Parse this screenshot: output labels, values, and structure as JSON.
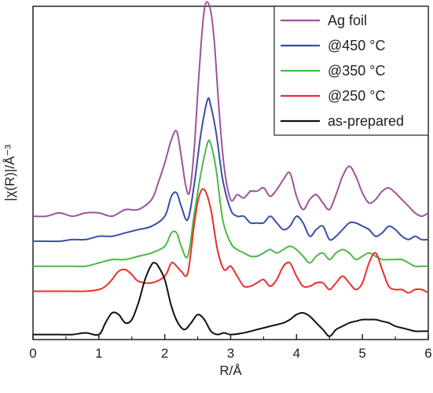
{
  "chart_data": {
    "type": "line",
    "xlabel": "R/Å",
    "ylabel": "|χ(R)|/Å⁻³",
    "xlim": [
      0,
      6
    ],
    "xticks": [
      0,
      1,
      2,
      3,
      4,
      5,
      6
    ],
    "ylim": [
      0,
      10
    ],
    "yticks": [],
    "grid": false,
    "legend_position": "top-right",
    "series": [
      {
        "name": "Ag foil",
        "color": "#a0529a",
        "x": [
          0,
          0.2,
          0.4,
          0.6,
          0.8,
          1.0,
          1.2,
          1.4,
          1.6,
          1.8,
          1.9,
          2.0,
          2.1,
          2.18,
          2.25,
          2.32,
          2.38,
          2.45,
          2.52,
          2.6,
          2.68,
          2.75,
          2.82,
          2.9,
          3.0,
          3.1,
          3.2,
          3.3,
          3.4,
          3.5,
          3.6,
          3.7,
          3.8,
          3.9,
          4.0,
          4.1,
          4.2,
          4.3,
          4.4,
          4.5,
          4.6,
          4.7,
          4.8,
          4.9,
          5.0,
          5.1,
          5.2,
          5.3,
          5.4,
          5.5,
          5.6,
          5.7,
          5.8,
          5.9,
          6.0
        ],
        "y": [
          3.7,
          3.7,
          3.8,
          3.7,
          3.8,
          3.8,
          3.7,
          3.9,
          3.9,
          4.2,
          4.7,
          5.3,
          6.0,
          6.25,
          5.5,
          4.6,
          4.45,
          5.8,
          8.0,
          9.9,
          10.0,
          9.0,
          7.0,
          5.2,
          4.2,
          4.35,
          4.25,
          4.45,
          4.45,
          4.55,
          4.3,
          4.5,
          4.8,
          5.0,
          4.3,
          3.9,
          4.2,
          4.35,
          4.1,
          3.9,
          4.35,
          4.9,
          5.2,
          4.9,
          4.4,
          4.1,
          4.2,
          4.45,
          4.55,
          4.4,
          4.2,
          4.0,
          3.8,
          3.7,
          3.8
        ]
      },
      {
        "name": "@450 °C",
        "color": "#3a4ea8",
        "x": [
          0,
          0.2,
          0.4,
          0.6,
          0.8,
          1.0,
          1.2,
          1.4,
          1.6,
          1.8,
          2.0,
          2.1,
          2.18,
          2.25,
          2.35,
          2.45,
          2.55,
          2.65,
          2.7,
          2.78,
          2.88,
          3.0,
          3.1,
          3.2,
          3.3,
          3.4,
          3.5,
          3.6,
          3.7,
          3.8,
          3.9,
          4.0,
          4.1,
          4.2,
          4.3,
          4.4,
          4.5,
          4.6,
          4.7,
          4.8,
          4.9,
          5.0,
          5.1,
          5.2,
          5.3,
          5.4,
          5.5,
          5.6,
          5.7,
          5.8,
          5.9,
          6.0
        ],
        "y": [
          2.95,
          2.95,
          2.95,
          3.0,
          3.0,
          3.1,
          3.1,
          3.2,
          3.3,
          3.4,
          3.7,
          4.3,
          4.4,
          4.0,
          3.6,
          4.7,
          6.2,
          7.2,
          7.0,
          6.2,
          4.8,
          3.9,
          3.7,
          3.7,
          3.5,
          3.5,
          3.5,
          3.7,
          3.5,
          3.3,
          3.4,
          3.7,
          3.5,
          3.1,
          3.3,
          3.4,
          3.0,
          3.1,
          3.3,
          3.5,
          3.5,
          3.4,
          3.3,
          3.1,
          3.2,
          3.4,
          3.3,
          3.1,
          3.0,
          3.1,
          3.0,
          3.0
        ]
      },
      {
        "name": "@350 °C",
        "color": "#4cb848",
        "x": [
          0,
          0.2,
          0.4,
          0.6,
          0.8,
          1.0,
          1.2,
          1.4,
          1.6,
          1.8,
          2.0,
          2.1,
          2.18,
          2.25,
          2.35,
          2.45,
          2.55,
          2.65,
          2.7,
          2.78,
          2.88,
          3.0,
          3.1,
          3.2,
          3.3,
          3.4,
          3.5,
          3.6,
          3.7,
          3.8,
          3.9,
          4.0,
          4.1,
          4.2,
          4.3,
          4.4,
          4.5,
          4.6,
          4.7,
          4.8,
          4.9,
          5.0,
          5.1,
          5.2,
          5.3,
          5.4,
          5.5,
          5.6,
          5.7,
          5.8,
          5.9,
          6.0
        ],
        "y": [
          2.2,
          2.2,
          2.2,
          2.2,
          2.2,
          2.3,
          2.4,
          2.4,
          2.5,
          2.6,
          2.8,
          3.2,
          3.2,
          2.8,
          2.5,
          3.8,
          5.0,
          5.9,
          5.85,
          5.1,
          3.6,
          2.9,
          2.7,
          2.6,
          2.5,
          2.5,
          2.6,
          2.7,
          2.6,
          2.7,
          2.8,
          2.7,
          2.5,
          2.3,
          2.5,
          2.6,
          2.4,
          2.6,
          2.7,
          2.6,
          2.4,
          2.5,
          2.6,
          2.5,
          2.4,
          2.4,
          2.4,
          2.4,
          2.3,
          2.2,
          2.2,
          2.2
        ]
      },
      {
        "name": "@250 °C",
        "color": "#e8302a",
        "x": [
          0,
          0.2,
          0.4,
          0.6,
          0.8,
          1.0,
          1.1,
          1.2,
          1.3,
          1.4,
          1.5,
          1.6,
          1.8,
          2.0,
          2.1,
          2.18,
          2.25,
          2.35,
          2.45,
          2.52,
          2.6,
          2.7,
          2.8,
          2.9,
          3.0,
          3.1,
          3.2,
          3.3,
          3.4,
          3.5,
          3.6,
          3.7,
          3.8,
          3.9,
          4.0,
          4.1,
          4.2,
          4.3,
          4.4,
          4.5,
          4.6,
          4.7,
          4.8,
          4.9,
          5.0,
          5.1,
          5.2,
          5.3,
          5.4,
          5.5,
          5.6,
          5.7,
          5.8,
          5.9,
          6.0
        ],
        "y": [
          1.45,
          1.45,
          1.45,
          1.45,
          1.45,
          1.5,
          1.6,
          1.8,
          2.05,
          2.1,
          1.95,
          1.75,
          1.7,
          1.9,
          2.3,
          2.2,
          2.05,
          2.0,
          3.5,
          4.3,
          4.5,
          3.9,
          2.7,
          2.1,
          2.2,
          1.9,
          1.6,
          1.6,
          1.7,
          1.8,
          1.6,
          1.8,
          2.2,
          2.3,
          1.9,
          1.6,
          1.6,
          1.7,
          1.7,
          1.5,
          1.7,
          1.9,
          1.7,
          1.5,
          1.7,
          2.3,
          2.6,
          2.1,
          1.6,
          1.5,
          1.5,
          1.4,
          1.5,
          1.5,
          1.4
        ]
      },
      {
        "name": "as-prepared",
        "color": "#111111",
        "x": [
          0,
          0.2,
          0.4,
          0.6,
          0.8,
          1.0,
          1.1,
          1.2,
          1.3,
          1.4,
          1.5,
          1.6,
          1.7,
          1.8,
          1.85,
          1.9,
          2.0,
          2.1,
          2.2,
          2.3,
          2.4,
          2.5,
          2.6,
          2.7,
          2.8,
          2.9,
          3.0,
          3.2,
          3.4,
          3.6,
          3.8,
          3.9,
          4.0,
          4.1,
          4.2,
          4.3,
          4.4,
          4.5,
          4.6,
          4.7,
          4.8,
          4.9,
          5.0,
          5.1,
          5.2,
          5.3,
          5.4,
          5.5,
          5.6,
          5.7,
          5.8,
          5.9,
          6.0
        ],
        "y": [
          0.15,
          0.15,
          0.15,
          0.15,
          0.2,
          0.15,
          0.5,
          0.8,
          0.75,
          0.5,
          0.6,
          1.1,
          1.8,
          2.25,
          2.3,
          2.2,
          1.8,
          1.0,
          0.5,
          0.3,
          0.5,
          0.75,
          0.6,
          0.25,
          0.15,
          0.2,
          0.15,
          0.2,
          0.3,
          0.4,
          0.5,
          0.6,
          0.75,
          0.8,
          0.7,
          0.5,
          0.3,
          0.1,
          0.3,
          0.4,
          0.5,
          0.55,
          0.6,
          0.6,
          0.6,
          0.55,
          0.5,
          0.4,
          0.35,
          0.3,
          0.25,
          0.25,
          0.25
        ]
      }
    ]
  }
}
